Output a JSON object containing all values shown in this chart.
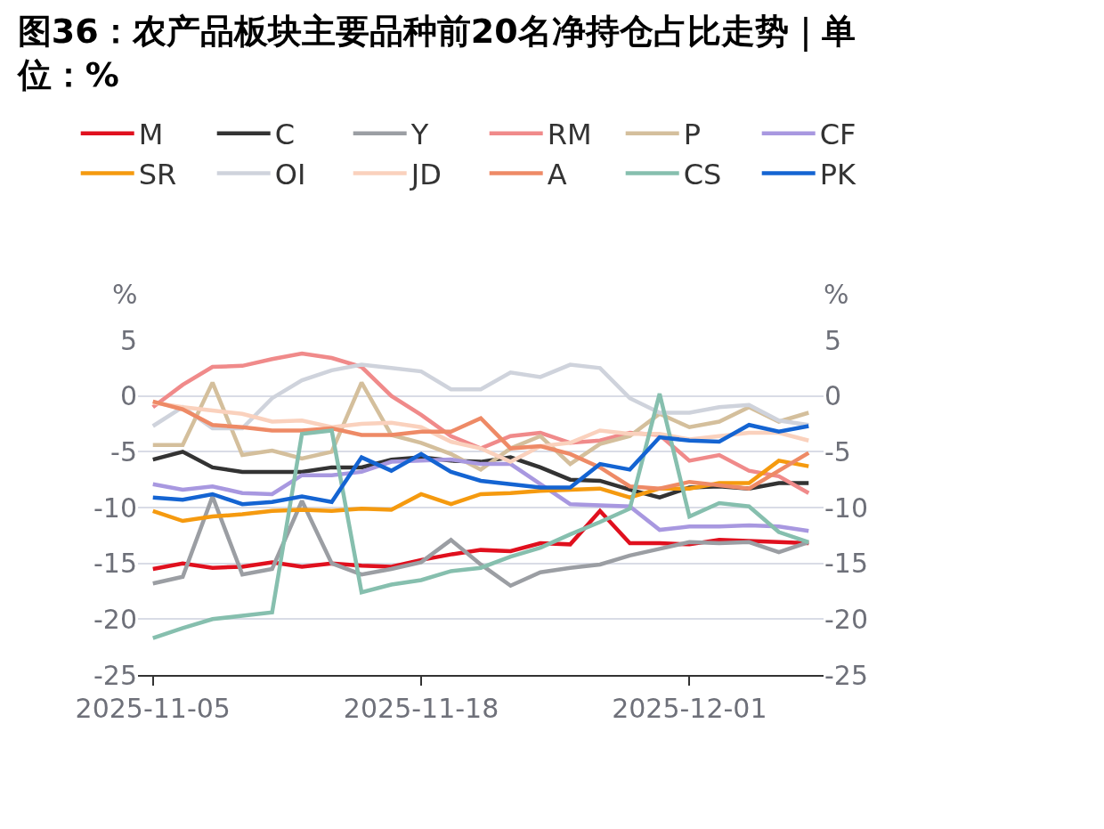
{
  "chart_data": {
    "type": "line",
    "title": "图36：农产品板块主要品种前20名净持仓占比走势｜单位：%",
    "ylabel": "%",
    "y2label": "%",
    "categories": [
      "2025-11-05",
      null,
      null,
      null,
      null,
      null,
      null,
      null,
      null,
      "2025-11-18",
      null,
      null,
      null,
      null,
      null,
      null,
      null,
      null,
      "2025-12-01",
      null,
      null,
      null,
      null
    ],
    "series": [
      {
        "name": "M",
        "color": "#e0101e",
        "values": [
          -15.5,
          -15,
          -15.4,
          -15.3,
          -14.9,
          -15.3,
          -15,
          -15.2,
          -15.3,
          -14.7,
          -14.2,
          -13.8,
          -13.9,
          -13.2,
          -13.3,
          -10.3,
          -13.2,
          -13.2,
          -13.3,
          -12.9,
          -13,
          -13.1,
          -13.2
        ]
      },
      {
        "name": "C",
        "color": "#333333",
        "values": [
          -5.7,
          -5,
          -6.4,
          -6.8,
          -6.8,
          -6.8,
          -6.4,
          -6.4,
          -5.7,
          -5.5,
          -5.8,
          -5.9,
          -5.5,
          -6.4,
          -7.5,
          -7.6,
          -8.4,
          -9.1,
          -8.2,
          -8.1,
          -8.3,
          -7.8,
          -7.8
        ]
      },
      {
        "name": "Y",
        "color": "#9b9ea3",
        "values": [
          -16.8,
          -16.2,
          -9,
          -16,
          -15.5,
          -9.4,
          -15,
          -16,
          -15.5,
          -14.9,
          -12.9,
          -15.1,
          -17,
          -15.8,
          -15.4,
          -15.1,
          -14.3,
          -13.7,
          -13.1,
          -13.2,
          -13.1,
          -14,
          -13.1
        ]
      },
      {
        "name": "RM",
        "color": "#f08a8a",
        "values": [
          -1,
          1,
          2.6,
          2.7,
          3.3,
          3.8,
          3.4,
          2.6,
          0,
          -1.7,
          -3.6,
          -4.7,
          -3.6,
          -3.3,
          -4.2,
          -4,
          -3.3,
          -3.5,
          -5.8,
          -5.3,
          -6.7,
          -7.2,
          -8.7
        ]
      },
      {
        "name": "P",
        "color": "#d4bf9c",
        "values": [
          -4.4,
          -4.4,
          1.2,
          -5.3,
          -4.9,
          -5.6,
          -5,
          1.2,
          -3.5,
          -4.2,
          -5.2,
          -6.6,
          -4.7,
          -3.6,
          -6.1,
          -4.3,
          -3.6,
          -1.6,
          -2.8,
          -2.3,
          -1,
          -2.3,
          -1.5
        ]
      },
      {
        "name": "CF",
        "color": "#a898e0",
        "values": [
          -7.9,
          -8.4,
          -8.1,
          -8.7,
          -8.8,
          -7.1,
          -7.1,
          -6.8,
          -5.9,
          -5.8,
          -5.7,
          -6.1,
          -6.1,
          -7.9,
          -9.7,
          -9.8,
          -9.9,
          -12,
          -11.7,
          -11.7,
          -11.6,
          -11.7,
          -12.1
        ]
      },
      {
        "name": "SR",
        "color": "#f59a0f",
        "values": [
          -10.3,
          -11.2,
          -10.8,
          -10.6,
          -10.3,
          -10.2,
          -10.3,
          -10.1,
          -10.2,
          -8.8,
          -9.7,
          -8.8,
          -8.7,
          -8.5,
          -8.4,
          -8.3,
          -9.1,
          -8.3,
          -8.3,
          -7.8,
          -7.8,
          -5.8,
          -6.3
        ]
      },
      {
        "name": "OI",
        "color": "#cfd3dc",
        "values": [
          -2.7,
          -1,
          -2.9,
          -2.9,
          -0.2,
          1.4,
          2.3,
          2.8,
          2.5,
          2.2,
          0.6,
          0.6,
          2.1,
          1.7,
          2.8,
          2.5,
          -0.2,
          -1.5,
          -1.5,
          -1,
          -0.8,
          -2.2,
          -2.6
        ]
      },
      {
        "name": "JD",
        "color": "#fad1bd",
        "values": [
          -0.6,
          -1,
          -1.3,
          -1.6,
          -2.3,
          -2.2,
          -2.8,
          -2.5,
          -2.4,
          -2.8,
          -4.1,
          -4.7,
          -5.9,
          -4.5,
          -4.2,
          -3.1,
          -3.4,
          -3.4,
          -3.9,
          -3.6,
          -3.3,
          -3.3,
          -4.0
        ]
      },
      {
        "name": "A",
        "color": "#ee8a66",
        "values": [
          -0.5,
          -1.2,
          -2.6,
          -2.8,
          -3.1,
          -3.1,
          -2.9,
          -3.5,
          -3.5,
          -3.2,
          -3.2,
          -2,
          -4.7,
          -4.5,
          -5.2,
          -6.4,
          -8.1,
          -8.3,
          -7.7,
          -8,
          -8.3,
          -6.7,
          -5.1
        ]
      },
      {
        "name": "CS",
        "color": "#86bfae",
        "values": [
          -21.7,
          -20.8,
          -20,
          -19.7,
          -19.4,
          -3.4,
          -3.1,
          -17.6,
          -16.9,
          -16.5,
          -15.7,
          -15.4,
          -14.4,
          -13.6,
          -12.4,
          -11.3,
          -10.1,
          0.2,
          -10.8,
          -9.6,
          -9.9,
          -12.2,
          -13.1
        ]
      },
      {
        "name": "PK",
        "color": "#1464d2",
        "values": [
          -9.1,
          -9.3,
          -8.8,
          -9.7,
          -9.5,
          -9,
          -9.5,
          -5.5,
          -6.7,
          -5.2,
          -6.8,
          -7.6,
          -7.9,
          -8.2,
          -8.2,
          -6.1,
          -6.6,
          -3.7,
          -4,
          -4.1,
          -2.6,
          -3.2,
          -2.7
        ]
      }
    ],
    "ylim": [
      -25,
      5
    ],
    "yticks": [
      -25,
      -20,
      -15,
      -10,
      -5,
      0,
      5
    ],
    "y2lim": [
      -25,
      5
    ],
    "y2ticks": [
      -25,
      -20,
      -15,
      -10,
      -5,
      0,
      5
    ],
    "grid": "y",
    "legend": "top",
    "marker": "none",
    "line_style": "solid"
  }
}
